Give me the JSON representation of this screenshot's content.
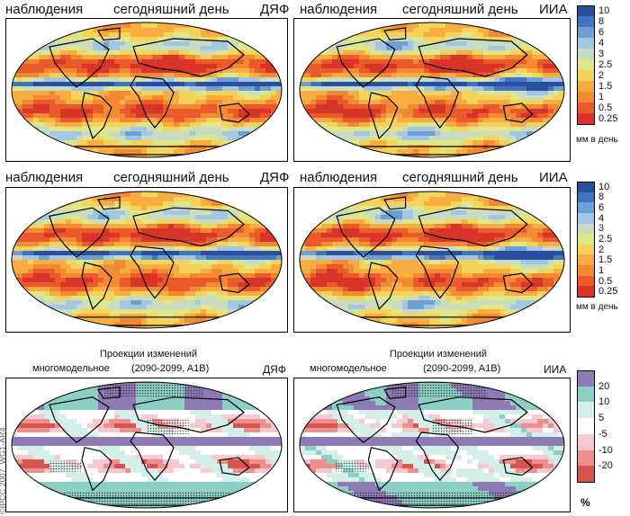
{
  "row1": {
    "left": {
      "obs": "наблюдения",
      "today": "сегодняшний день",
      "tag": "ДЯФ"
    },
    "right": {
      "obs": "наблюдения",
      "today": "сегодняшний день",
      "tag": "ИИА"
    }
  },
  "row2": {
    "left": {
      "obs": "наблюдения",
      "today": "сегодняшний день",
      "tag": "ДЯФ"
    },
    "right": {
      "obs": "наблюдения",
      "today": "сегодняшний день",
      "tag": "ИИА"
    }
  },
  "row3": {
    "left": {
      "line1": "Проекции изменений",
      "line2": "многомодельное",
      "period": "(2090-2099, A1B)",
      "tag": "ДЯФ"
    },
    "right": {
      "line1": "Проекции изменений",
      "line2": "многомодельное",
      "period": "(2090-2099, A1B)",
      "tag": "ИИА"
    }
  },
  "precip_scale": {
    "labels": [
      "10",
      "8",
      "6",
      "4",
      "3",
      "2.5",
      "2",
      "1.5",
      "1",
      "0.5",
      "0.25"
    ],
    "colors": [
      "#2a4fa0",
      "#3f74c1",
      "#6d9fd3",
      "#a3c6e2",
      "#c7dcc1",
      "#dfe68a",
      "#f4d35a",
      "#f7ad3f",
      "#f28a33",
      "#ea5a2b",
      "#d9342a"
    ],
    "unit": "мм в день"
  },
  "change_scale": {
    "labels": [
      "20",
      "10",
      "5",
      "-5",
      "-10",
      "-20"
    ],
    "colors": [
      "#8e7bb5",
      "#8ccfc4",
      "#d4efe9",
      "#ffffff",
      "#f6c9d1",
      "#ec8f8f",
      "#d9534f"
    ],
    "unit": "%"
  },
  "copyright": "©IPCC 2007: WG1-AR4"
}
